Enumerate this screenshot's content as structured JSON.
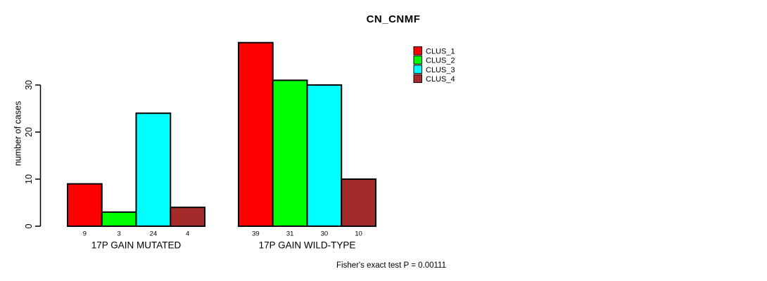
{
  "chart_data": {
    "type": "bar",
    "title": "CN_CNMF",
    "xlabel": "",
    "ylabel": "number of cases",
    "categories": [
      "17P GAIN MUTATED",
      "17P GAIN WILD-TYPE"
    ],
    "series": [
      {
        "name": "CLUS_1",
        "color": "#FF0000",
        "values": [
          9,
          39
        ]
      },
      {
        "name": "CLUS_2",
        "color": "#00FF00",
        "values": [
          3,
          31
        ]
      },
      {
        "name": "CLUS_3",
        "color": "#00FFFF",
        "values": [
          24,
          30
        ]
      },
      {
        "name": "CLUS_4",
        "color": "#A52A2A",
        "values": [
          4,
          10
        ]
      }
    ],
    "bar_value_labels": [
      [
        9,
        3,
        24,
        4
      ],
      [
        39,
        31,
        30,
        10
      ]
    ],
    "yticks": [
      0,
      10,
      20,
      30
    ],
    "ylim": [
      0,
      39
    ],
    "grid": false,
    "legend": {
      "position": "top-right",
      "entries": [
        "CLUS_1",
        "CLUS_2",
        "CLUS_3",
        "CLUS_4"
      ]
    },
    "annotation": "Fisher's exact test P = 0.00111",
    "axis_color": "#000000",
    "bar_border_color": "#000000"
  }
}
